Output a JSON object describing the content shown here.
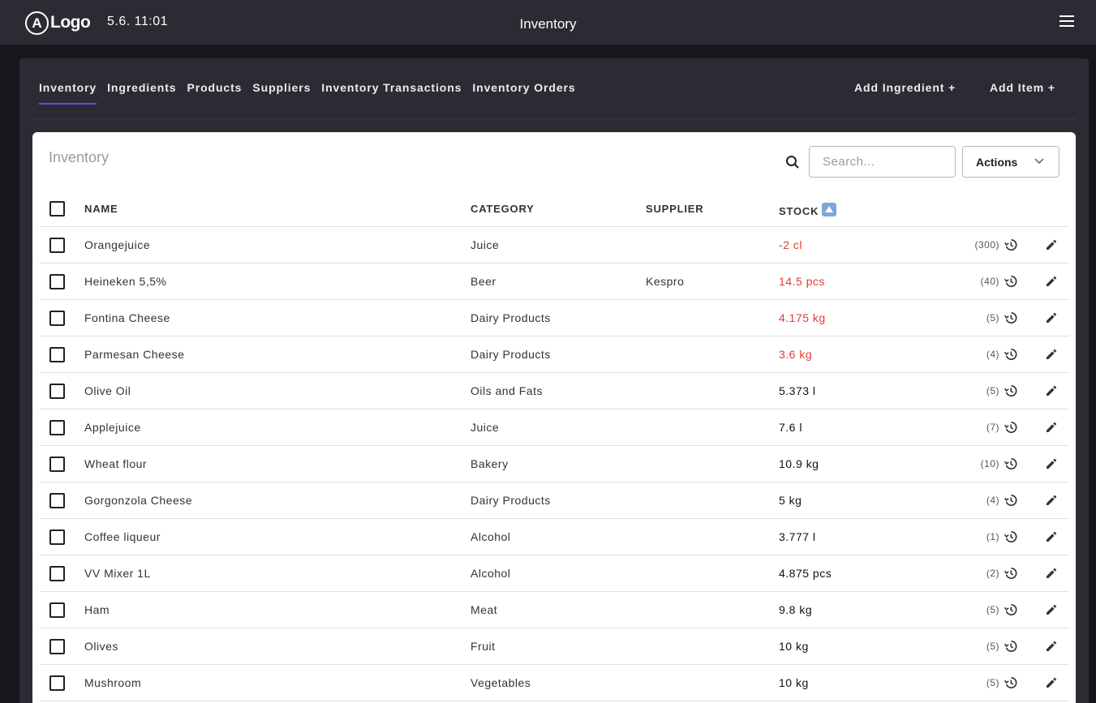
{
  "topbar": {
    "logo_letter": "A",
    "logo_text": "Logo",
    "clock": "5.6. 11:01",
    "title": "Inventory"
  },
  "tabs": [
    {
      "label": "Inventory",
      "active": true
    },
    {
      "label": "Ingredients",
      "active": false
    },
    {
      "label": "Products",
      "active": false
    },
    {
      "label": "Suppliers",
      "active": false
    },
    {
      "label": "Inventory Transactions",
      "active": false
    },
    {
      "label": "Inventory Orders",
      "active": false
    }
  ],
  "header_actions": {
    "add_ingredient": "Add Ingredient  +",
    "add_item": "Add Item  +"
  },
  "card": {
    "title": "Inventory",
    "search_placeholder": "Search...",
    "actions_label": "Actions"
  },
  "columns": {
    "name": "NAME",
    "category": "CATEGORY",
    "supplier": "SUPPLIER",
    "stock": "STOCK"
  },
  "colors": {
    "accent": "#5b4fd6",
    "low_stock": "#e53935",
    "topbar": "#2c2b33",
    "background": "#17161d"
  },
  "rows": [
    {
      "name": "Orangejuice",
      "category": "Juice",
      "supplier": "",
      "stock": "-2 cl",
      "low": true,
      "count": "(300)"
    },
    {
      "name": "Heineken 5,5%",
      "category": "Beer",
      "supplier": "Kespro",
      "stock": "14.5 pcs",
      "low": true,
      "count": "(40)"
    },
    {
      "name": "Fontina Cheese",
      "category": "Dairy Products",
      "supplier": "",
      "stock": "4.175 kg",
      "low": true,
      "count": "(5)"
    },
    {
      "name": "Parmesan Cheese",
      "category": "Dairy Products",
      "supplier": "",
      "stock": "3.6 kg",
      "low": true,
      "count": "(4)"
    },
    {
      "name": "Olive Oil",
      "category": "Oils and Fats",
      "supplier": "",
      "stock": "5.373 l",
      "low": false,
      "count": "(5)"
    },
    {
      "name": "Applejuice",
      "category": "Juice",
      "supplier": "",
      "stock": "7.6 l",
      "low": false,
      "count": "(7)"
    },
    {
      "name": "Wheat flour",
      "category": "Bakery",
      "supplier": "",
      "stock": "10.9 kg",
      "low": false,
      "count": "(10)"
    },
    {
      "name": "Gorgonzola Cheese",
      "category": "Dairy Products",
      "supplier": "",
      "stock": "5 kg",
      "low": false,
      "count": "(4)"
    },
    {
      "name": "Coffee liqueur",
      "category": "Alcohol",
      "supplier": "",
      "stock": "3.777 l",
      "low": false,
      "count": "(1)"
    },
    {
      "name": "VV Mixer 1L",
      "category": "Alcohol",
      "supplier": "",
      "stock": "4.875 pcs",
      "low": false,
      "count": "(2)"
    },
    {
      "name": "Ham",
      "category": "Meat",
      "supplier": "",
      "stock": "9.8 kg",
      "low": false,
      "count": "(5)"
    },
    {
      "name": "Olives",
      "category": "Fruit",
      "supplier": "",
      "stock": "10 kg",
      "low": false,
      "count": "(5)"
    },
    {
      "name": "Mushroom",
      "category": "Vegetables",
      "supplier": "",
      "stock": "10 kg",
      "low": false,
      "count": "(5)"
    }
  ]
}
